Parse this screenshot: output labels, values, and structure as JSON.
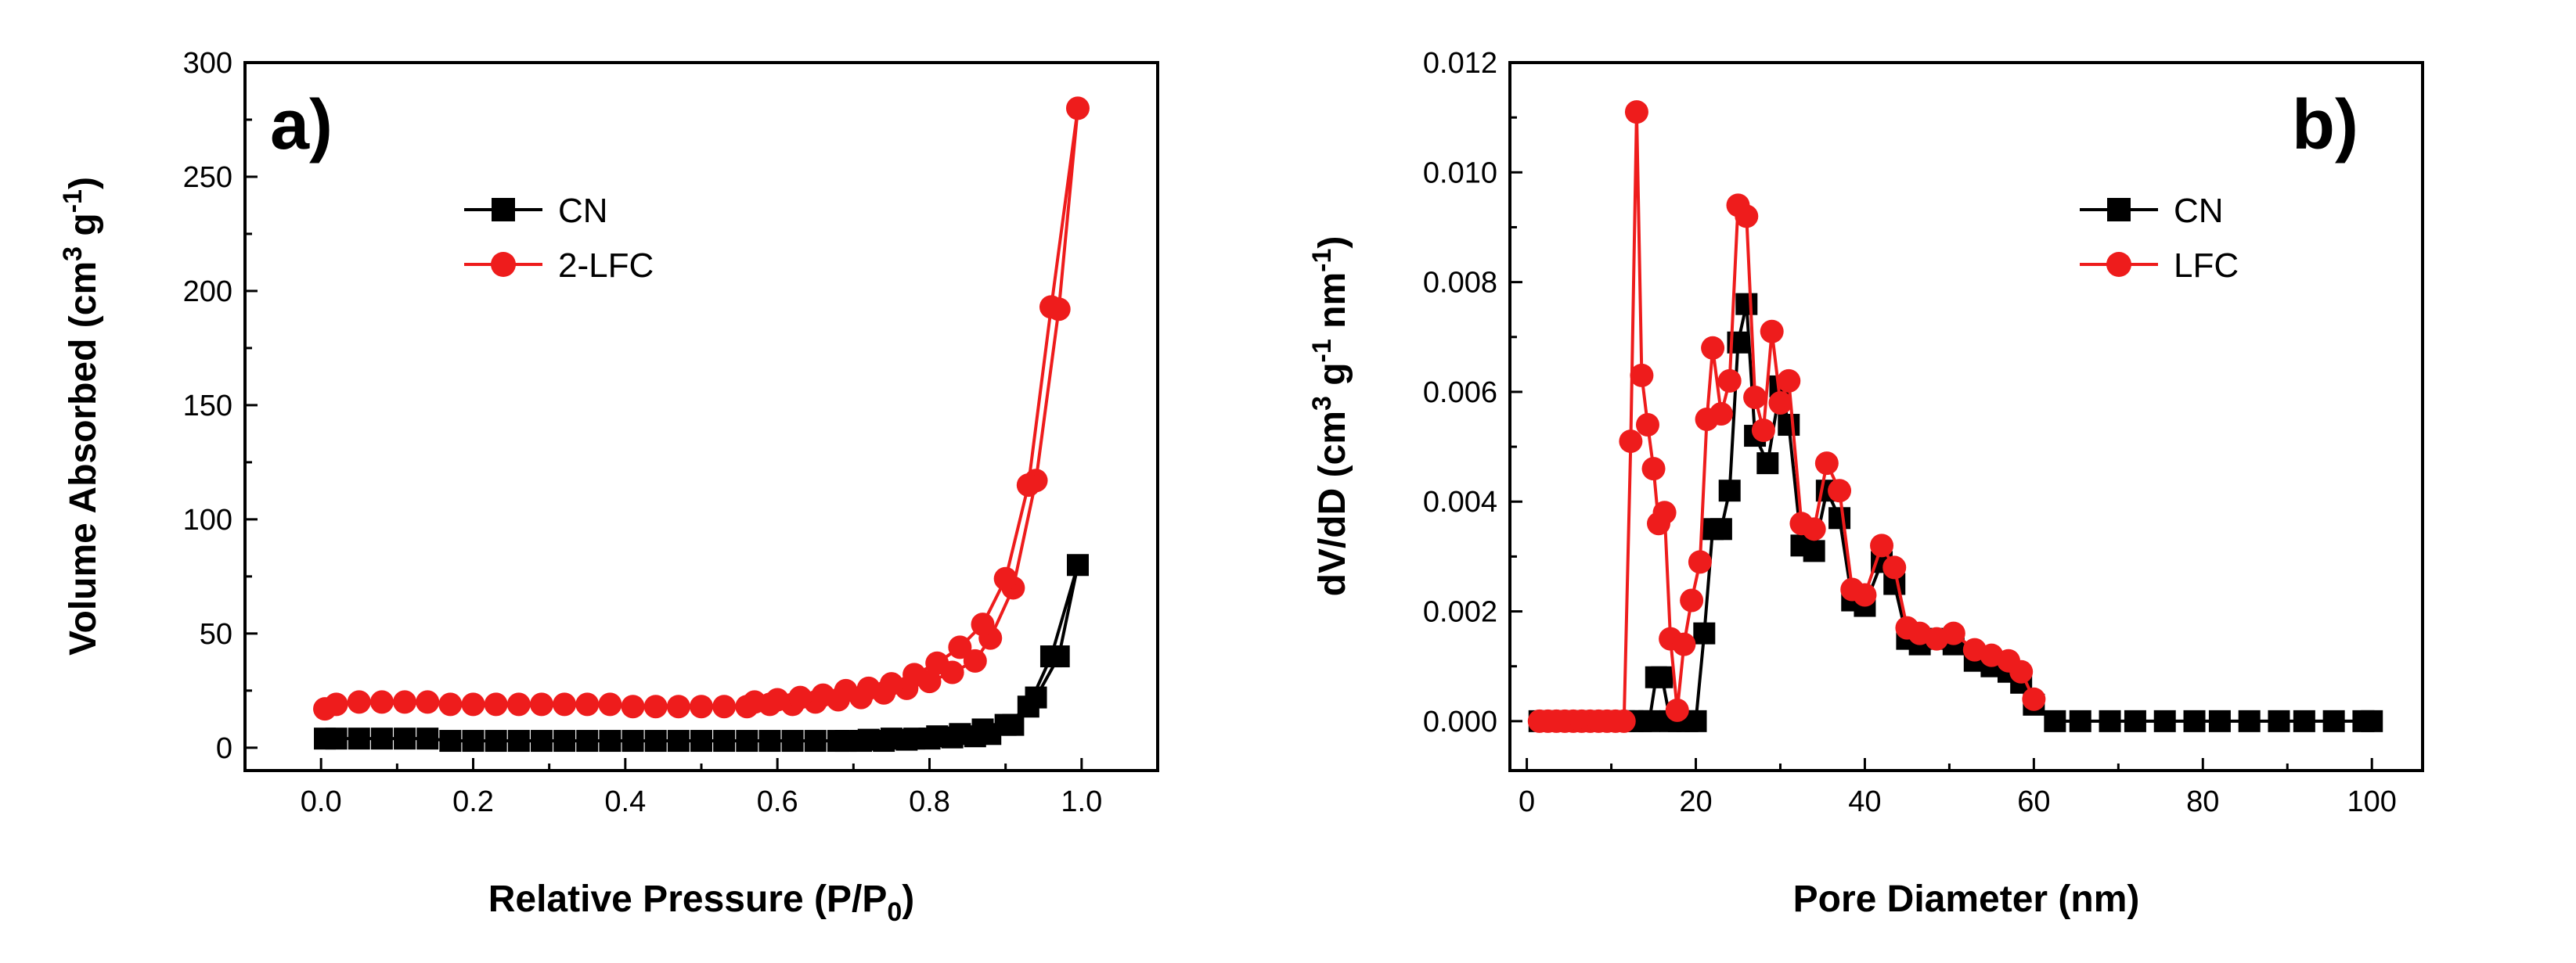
{
  "chart_data": [
    {
      "type": "line",
      "panel_label": "a)",
      "xlabel": "Relative Pressure (P/P",
      "xlabel_sub": "0",
      "xlabel_end": ")",
      "ylabel_pre": "Volume Absorbed (cm",
      "ylabel_sup1": "3",
      "ylabel_mid": " g",
      "ylabel_sup2": "-1",
      "ylabel_end": ")",
      "xlim": [
        -0.1,
        1.1
      ],
      "ylim": [
        -10,
        300
      ],
      "xticks": [
        0.0,
        0.2,
        0.4,
        0.6,
        0.8,
        1.0
      ],
      "xtick_labels": [
        "0.0",
        "0.2",
        "0.4",
        "0.6",
        "0.8",
        "1.0"
      ],
      "yticks": [
        0,
        50,
        100,
        150,
        200,
        250,
        300
      ],
      "ytick_labels": [
        "0",
        "50",
        "100",
        "150",
        "200",
        "250",
        "300"
      ],
      "legend": [
        "CN",
        "2-LFC"
      ],
      "series": [
        {
          "name": "CN",
          "color": "#000000",
          "marker": "square",
          "x": [
            0.005,
            0.02,
            0.05,
            0.08,
            0.11,
            0.14,
            0.17,
            0.2,
            0.23,
            0.26,
            0.29,
            0.32,
            0.35,
            0.38,
            0.41,
            0.44,
            0.47,
            0.5,
            0.53,
            0.56,
            0.59,
            0.62,
            0.65,
            0.68,
            0.71,
            0.74,
            0.77,
            0.8,
            0.83,
            0.86,
            0.88,
            0.91,
            0.94,
            0.97,
            0.995,
            0.96,
            0.93,
            0.9,
            0.87,
            0.84,
            0.81,
            0.78,
            0.75,
            0.72,
            0.69
          ],
          "y": [
            4,
            4,
            4,
            4,
            4,
            4,
            3,
            3,
            3,
            3,
            3,
            3,
            3,
            3,
            3,
            3,
            3,
            3,
            3,
            3,
            3,
            3,
            3,
            3,
            3,
            3,
            3.5,
            4,
            4.5,
            5,
            6,
            10,
            22,
            40,
            80,
            40,
            18,
            10,
            8,
            6,
            5,
            4,
            4,
            3.5,
            3
          ]
        },
        {
          "name": "2-LFC",
          "color": "#ee1c1c",
          "marker": "circle",
          "x": [
            0.005,
            0.02,
            0.05,
            0.08,
            0.11,
            0.14,
            0.17,
            0.2,
            0.23,
            0.26,
            0.29,
            0.32,
            0.35,
            0.38,
            0.41,
            0.44,
            0.47,
            0.5,
            0.53,
            0.56,
            0.59,
            0.62,
            0.65,
            0.68,
            0.71,
            0.74,
            0.77,
            0.8,
            0.83,
            0.86,
            0.88,
            0.91,
            0.94,
            0.97,
            0.995,
            0.96,
            0.93,
            0.9,
            0.87,
            0.84,
            0.81,
            0.78,
            0.75,
            0.72,
            0.69,
            0.66,
            0.63,
            0.6,
            0.57
          ],
          "y": [
            17,
            19,
            20,
            20,
            20,
            20,
            19,
            19,
            19,
            19,
            19,
            19,
            19,
            19,
            18,
            18,
            18,
            18,
            18,
            18,
            19,
            19,
            20,
            21,
            22,
            24,
            26,
            29,
            33,
            38,
            48,
            70,
            117,
            192,
            280,
            193,
            115,
            74,
            54,
            44,
            37,
            32,
            28,
            26,
            25,
            23,
            22,
            21,
            20
          ]
        }
      ]
    },
    {
      "type": "line",
      "panel_label": "b)",
      "xlabel": "Pore Diameter (nm)",
      "ylabel_pre": "dV/dD (cm",
      "ylabel_sup1": "3",
      "ylabel_mid": " g",
      "ylabel_sup2": "-1",
      "ylabel_mid2": " nm",
      "ylabel_sup3": "-1",
      "ylabel_end": ")",
      "xlim": [
        -2,
        106
      ],
      "ylim": [
        -0.0009,
        0.012
      ],
      "xticks": [
        0,
        20,
        40,
        60,
        80,
        100
      ],
      "xtick_labels": [
        "0",
        "20",
        "40",
        "60",
        "80",
        "100"
      ],
      "yticks": [
        0.0,
        0.002,
        0.004,
        0.006,
        0.008,
        0.01,
        0.012
      ],
      "ytick_labels": [
        "0.000",
        "0.002",
        "0.004",
        "0.006",
        "0.008",
        "0.010",
        "0.012"
      ],
      "legend": [
        "CN",
        "LFC"
      ],
      "series": [
        {
          "name": "CN",
          "color": "#000000",
          "marker": "square",
          "x": [
            1.5,
            2.5,
            3.5,
            4.5,
            5.5,
            6.5,
            7.5,
            8.5,
            9.5,
            10.5,
            11.5,
            12.5,
            13.5,
            14.5,
            15.3,
            16.0,
            17.0,
            18.0,
            19.0,
            20.0,
            21.0,
            22.0,
            23.0,
            24.0,
            25.0,
            26.0,
            27.0,
            28.5,
            30.0,
            31.0,
            32.5,
            34.0,
            35.5,
            37.0,
            38.5,
            40.0,
            42.0,
            43.5,
            45.0,
            46.5,
            48.5,
            50.5,
            53.0,
            55.0,
            57.0,
            58.5,
            60.0,
            62.5,
            65.5,
            69.0,
            72.0,
            75.5,
            79.0,
            82.0,
            85.5,
            89.0,
            92.0,
            95.5,
            99.0,
            100.0
          ],
          "y": [
            0,
            0,
            0,
            0,
            0,
            0,
            0,
            0,
            0,
            0,
            0,
            0,
            0,
            0,
            0.0008,
            0.0008,
            0.0,
            0.0,
            0.0,
            0.0,
            0.0016,
            0.0035,
            0.0035,
            0.0042,
            0.0069,
            0.0076,
            0.0052,
            0.0047,
            0.0061,
            0.0054,
            0.0032,
            0.0031,
            0.0042,
            0.0037,
            0.0022,
            0.0021,
            0.0029,
            0.0025,
            0.0015,
            0.0014,
            0.0015,
            0.0014,
            0.0011,
            0.001,
            0.0009,
            0.0007,
            0.0003,
            0,
            0,
            0,
            0,
            0,
            0,
            0,
            0,
            0,
            0,
            0,
            0,
            0
          ]
        },
        {
          "name": "LFC",
          "color": "#ee1c1c",
          "marker": "circle",
          "x": [
            1.5,
            2.5,
            3.5,
            4.5,
            5.5,
            6.5,
            7.5,
            8.5,
            9.5,
            10.5,
            11.5,
            12.3,
            13.0,
            13.6,
            14.3,
            15.0,
            15.6,
            16.3,
            17.0,
            17.8,
            18.6,
            19.5,
            20.5,
            21.3,
            22.0,
            23.0,
            24.0,
            25.0,
            26.0,
            27.0,
            28.0,
            29.0,
            30.0,
            31.0,
            32.5,
            34.0,
            35.5,
            37.0,
            38.5,
            40.0,
            42.0,
            43.5,
            45.0,
            46.5,
            48.5,
            50.5,
            53.0,
            55.0,
            57.0,
            58.5,
            60.0
          ],
          "y": [
            0,
            0,
            0,
            0,
            0,
            0,
            0,
            0,
            0,
            0,
            0,
            0.0051,
            0.0111,
            0.0063,
            0.0054,
            0.0046,
            0.0036,
            0.0038,
            0.0015,
            0.0002,
            0.0014,
            0.0022,
            0.0029,
            0.0055,
            0.0068,
            0.0056,
            0.0062,
            0.0094,
            0.0092,
            0.0059,
            0.0053,
            0.0071,
            0.0058,
            0.0062,
            0.0036,
            0.0035,
            0.0047,
            0.0042,
            0.0024,
            0.0023,
            0.0032,
            0.0028,
            0.0017,
            0.0016,
            0.0015,
            0.0016,
            0.0013,
            0.0012,
            0.0011,
            0.0009,
            0.0004
          ]
        }
      ]
    }
  ]
}
